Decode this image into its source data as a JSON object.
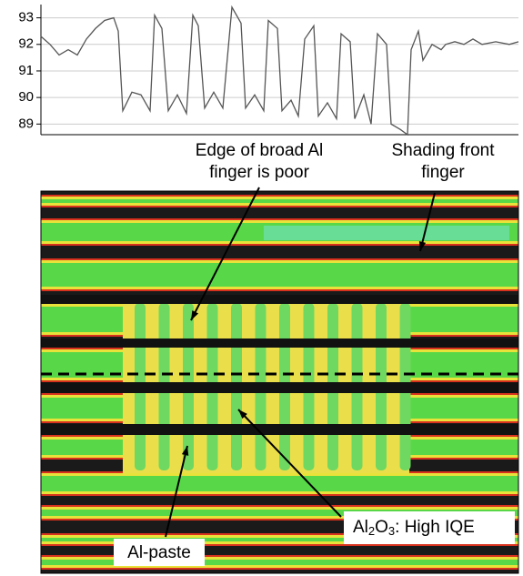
{
  "chart_data": {
    "type": "line",
    "x": [
      0,
      10,
      20,
      30,
      40,
      50,
      60,
      70,
      80,
      85,
      90,
      100,
      110,
      120,
      125,
      133,
      140,
      150,
      160,
      167,
      173,
      180,
      190,
      200,
      210,
      220,
      225,
      235,
      245,
      250,
      260,
      265,
      275,
      283,
      290,
      300,
      305,
      315,
      325,
      330,
      340,
      345,
      355,
      363,
      370,
      380,
      385,
      395,
      403,
      407,
      415,
      420,
      430,
      440,
      445,
      455,
      465,
      475,
      485,
      500,
      515,
      525
    ],
    "series": [
      {
        "color": "#555555",
        "values": [
          92.3,
          92.0,
          91.6,
          91.8,
          91.6,
          92.2,
          92.6,
          92.9,
          93.0,
          92.5,
          89.5,
          90.2,
          90.1,
          89.5,
          93.1,
          92.6,
          89.5,
          90.1,
          89.4,
          93.1,
          92.7,
          89.6,
          90.2,
          89.6,
          93.4,
          92.8,
          89.6,
          90.1,
          89.5,
          92.9,
          92.6,
          89.5,
          89.9,
          89.3,
          92.2,
          92.7,
          89.3,
          89.8,
          89.2,
          92.4,
          92.1,
          89.2,
          90.1,
          89.0,
          92.4,
          92.0,
          89.0,
          88.8,
          88.6,
          91.8,
          92.5,
          91.4,
          92.0,
          91.8,
          92.0,
          92.1,
          92.0,
          92.2,
          92.0,
          92.1,
          92.0,
          92.1
        ]
      }
    ],
    "xlim": [
      0,
      525
    ],
    "ylim": [
      88.6,
      93.5
    ],
    "yticks": [
      89,
      90,
      91,
      92,
      93
    ],
    "grid": true,
    "annotations": [
      {
        "lines": [
          "Edge of broad Al",
          "finger is poor"
        ]
      },
      {
        "lines": [
          "Shading front",
          "finger"
        ]
      },
      {
        "lines": [
          "Al-paste"
        ]
      },
      {
        "parts": [
          "Al",
          "2",
          "O",
          "3",
          ": High IQE"
        ]
      }
    ]
  }
}
